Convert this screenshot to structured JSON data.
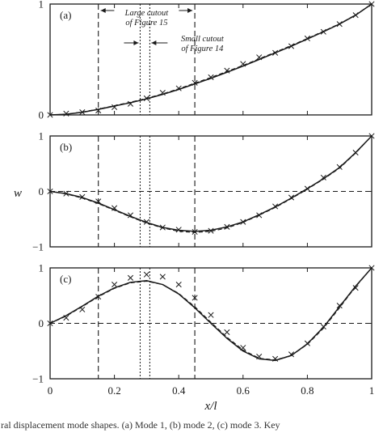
{
  "chart_data": {
    "type": "line",
    "xlabel": "x/l",
    "ylabel": "w",
    "xlim": [
      0,
      1
    ],
    "x_ticks": [
      "0",
      "0.2",
      "0.4",
      "0.6",
      "0.8",
      "1"
    ],
    "grid": false,
    "vertical_lines": {
      "large_cutout": [
        0.15,
        0.45
      ],
      "small_cutout": [
        0.28,
        0.31
      ]
    },
    "annotations": {
      "large_cutout": [
        "Large cutout",
        "of Figure 15"
      ],
      "small_cutout": [
        "Small cutout",
        "of Figure 14"
      ]
    },
    "caption": "ral displacement mode shapes. (a) Mode 1, (b) mode 2, (c) mode 3. Key",
    "panels": [
      {
        "label": "(a)",
        "ylim": [
          0,
          1
        ],
        "y_ticks": [
          "0",
          "1"
        ],
        "zero_line": false,
        "series": [
          {
            "style": "solid",
            "x": [
              0,
              0.05,
              0.1,
              0.15,
              0.2,
              0.25,
              0.3,
              0.35,
              0.4,
              0.45,
              0.5,
              0.55,
              0.6,
              0.65,
              0.7,
              0.75,
              0.8,
              0.85,
              0.9,
              0.95,
              1.0
            ],
            "y": [
              0,
              0.006,
              0.024,
              0.05,
              0.08,
              0.11,
              0.145,
              0.185,
              0.23,
              0.28,
              0.33,
              0.385,
              0.44,
              0.5,
              0.56,
              0.62,
              0.685,
              0.75,
              0.82,
              0.9,
              1.0
            ]
          },
          {
            "style": "dashed",
            "x": [
              0,
              0.05,
              0.1,
              0.15,
              0.2,
              0.25,
              0.3,
              0.35,
              0.4,
              0.45,
              0.5,
              0.55,
              0.6,
              0.65,
              0.7,
              0.75,
              0.8,
              0.85,
              0.9,
              0.95,
              1.0
            ],
            "y": [
              0,
              0.007,
              0.026,
              0.053,
              0.084,
              0.115,
              0.15,
              0.19,
              0.236,
              0.287,
              0.338,
              0.392,
              0.447,
              0.506,
              0.566,
              0.626,
              0.69,
              0.755,
              0.823,
              0.902,
              1.0
            ]
          },
          {
            "style": "markers",
            "x": [
              0,
              0.05,
              0.1,
              0.15,
              0.2,
              0.25,
              0.3,
              0.35,
              0.4,
              0.45,
              0.5,
              0.55,
              0.6,
              0.65,
              0.7,
              0.75,
              0.8,
              0.85,
              0.9,
              0.95,
              1.0
            ],
            "y": [
              0,
              0.012,
              0.025,
              0.04,
              0.07,
              0.1,
              0.15,
              0.2,
              0.24,
              0.29,
              0.34,
              0.4,
              0.46,
              0.52,
              0.56,
              0.62,
              0.69,
              0.75,
              0.82,
              0.9,
              1.0
            ]
          }
        ]
      },
      {
        "label": "(b)",
        "ylim": [
          -1,
          1
        ],
        "y_ticks": [
          "1",
          "0",
          "−1"
        ],
        "zero_line": true,
        "series": [
          {
            "style": "solid",
            "x": [
              0,
              0.05,
              0.1,
              0.15,
              0.2,
              0.25,
              0.3,
              0.35,
              0.4,
              0.45,
              0.5,
              0.55,
              0.6,
              0.65,
              0.7,
              0.75,
              0.8,
              0.85,
              0.9,
              0.95,
              1.0
            ],
            "y": [
              0,
              -0.04,
              -0.11,
              -0.21,
              -0.33,
              -0.45,
              -0.56,
              -0.65,
              -0.7,
              -0.72,
              -0.7,
              -0.64,
              -0.55,
              -0.42,
              -0.28,
              -0.12,
              0.05,
              0.23,
              0.43,
              0.7,
              1.0
            ]
          },
          {
            "style": "dashed",
            "x": [
              0,
              0.05,
              0.1,
              0.15,
              0.2,
              0.25,
              0.3,
              0.35,
              0.4,
              0.45,
              0.5,
              0.55,
              0.6,
              0.65,
              0.7,
              0.75,
              0.8,
              0.85,
              0.9,
              0.95,
              1.0
            ],
            "y": [
              0,
              -0.045,
              -0.12,
              -0.22,
              -0.34,
              -0.46,
              -0.57,
              -0.66,
              -0.72,
              -0.74,
              -0.72,
              -0.66,
              -0.56,
              -0.43,
              -0.29,
              -0.13,
              0.04,
              0.22,
              0.42,
              0.69,
              1.0
            ]
          },
          {
            "style": "markers",
            "x": [
              0,
              0.05,
              0.1,
              0.15,
              0.2,
              0.25,
              0.3,
              0.35,
              0.4,
              0.45,
              0.5,
              0.55,
              0.6,
              0.65,
              0.7,
              0.75,
              0.8,
              0.85,
              0.9,
              0.95,
              1.0
            ],
            "y": [
              0,
              -0.04,
              -0.1,
              -0.18,
              -0.3,
              -0.43,
              -0.55,
              -0.65,
              -0.69,
              -0.73,
              -0.71,
              -0.64,
              -0.55,
              -0.43,
              -0.27,
              -0.11,
              0.05,
              0.25,
              0.44,
              0.7,
              1.0
            ]
          }
        ]
      },
      {
        "label": "(c)",
        "ylim": [
          -1,
          1
        ],
        "y_ticks": [
          "1",
          "0",
          "−1"
        ],
        "zero_line": true,
        "series": [
          {
            "style": "solid",
            "x": [
              0,
              0.05,
              0.1,
              0.15,
              0.2,
              0.25,
              0.3,
              0.35,
              0.4,
              0.45,
              0.5,
              0.55,
              0.6,
              0.65,
              0.7,
              0.75,
              0.8,
              0.85,
              0.9,
              0.95,
              1.0
            ],
            "y": [
              0,
              0.14,
              0.31,
              0.49,
              0.64,
              0.74,
              0.77,
              0.7,
              0.53,
              0.28,
              0.0,
              -0.27,
              -0.5,
              -0.64,
              -0.67,
              -0.58,
              -0.37,
              -0.07,
              0.3,
              0.67,
              1.0
            ]
          },
          {
            "style": "dashed",
            "x": [
              0,
              0.05,
              0.1,
              0.15,
              0.2,
              0.25,
              0.3,
              0.35,
              0.4,
              0.45,
              0.5,
              0.55,
              0.6,
              0.65,
              0.7,
              0.75,
              0.8,
              0.85,
              0.9,
              0.95,
              1.0
            ],
            "y": [
              0,
              0.13,
              0.3,
              0.48,
              0.63,
              0.73,
              0.76,
              0.7,
              0.54,
              0.3,
              0.02,
              -0.25,
              -0.48,
              -0.63,
              -0.66,
              -0.58,
              -0.38,
              -0.09,
              0.28,
              0.66,
              1.0
            ]
          },
          {
            "style": "markers",
            "x": [
              0,
              0.05,
              0.1,
              0.15,
              0.2,
              0.25,
              0.3,
              0.35,
              0.4,
              0.45,
              0.5,
              0.55,
              0.6,
              0.65,
              0.7,
              0.75,
              0.8,
              0.85,
              0.9,
              0.95,
              1.0
            ],
            "y": [
              0,
              0.1,
              0.25,
              0.48,
              0.7,
              0.82,
              0.88,
              0.84,
              0.7,
              0.46,
              0.15,
              -0.16,
              -0.44,
              -0.6,
              -0.64,
              -0.56,
              -0.36,
              -0.06,
              0.32,
              0.64,
              1.0
            ]
          }
        ]
      }
    ]
  },
  "colors": {
    "ink": "#1a1a1a",
    "background": "#ffffff"
  }
}
